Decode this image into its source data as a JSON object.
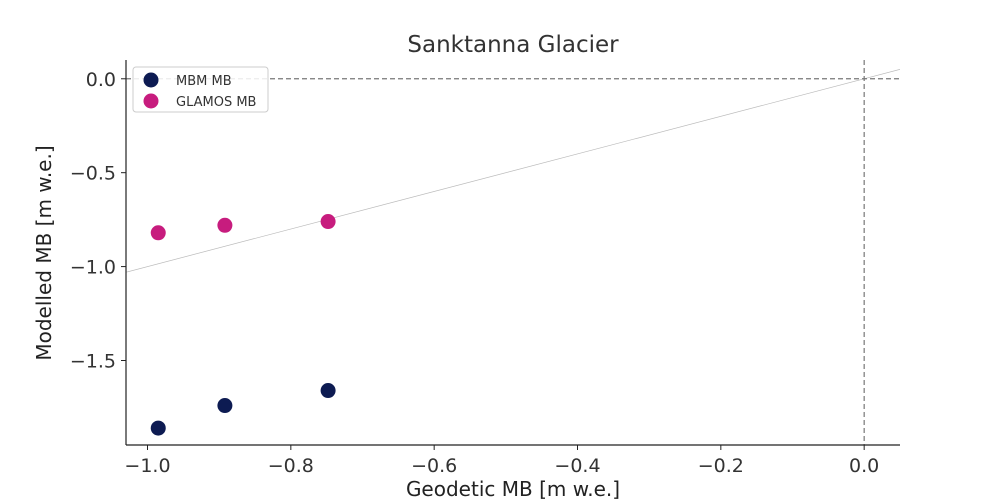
{
  "chart_data": {
    "type": "scatter",
    "title": "Sanktanna Glacier",
    "xlabel": "Geodetic MB [m w.e.]",
    "ylabel": "Modelled MB [m w.e.]",
    "xlim": [
      -1.03,
      0.05
    ],
    "ylim": [
      -1.95,
      0.1
    ],
    "x_ticks": [
      -1.0,
      -0.8,
      -0.6,
      -0.4,
      -0.2,
      0.0
    ],
    "x_tick_labels": [
      "−1.0",
      "−0.8",
      "−0.6",
      "−0.4",
      "−0.2",
      "0.0"
    ],
    "y_ticks": [
      0.0,
      -0.5,
      -1.0,
      -1.5
    ],
    "y_tick_labels": [
      "0.0",
      "−0.5",
      "−1.0",
      "−1.5"
    ],
    "grid": false,
    "legend_position": "top-left",
    "reference_lines": {
      "identity_line": true,
      "zero_horizontal": true,
      "zero_vertical": true
    },
    "series": [
      {
        "name": "MBM MB",
        "color": "#0d1b52",
        "points": [
          {
            "x": -0.985,
            "y": -1.86
          },
          {
            "x": -0.892,
            "y": -1.74
          },
          {
            "x": -0.748,
            "y": -1.66
          }
        ]
      },
      {
        "name": "GLAMOS MB",
        "color": "#c71c7e",
        "points": [
          {
            "x": -0.985,
            "y": -0.82
          },
          {
            "x": -0.892,
            "y": -0.78
          },
          {
            "x": -0.748,
            "y": -0.76
          }
        ]
      }
    ]
  }
}
